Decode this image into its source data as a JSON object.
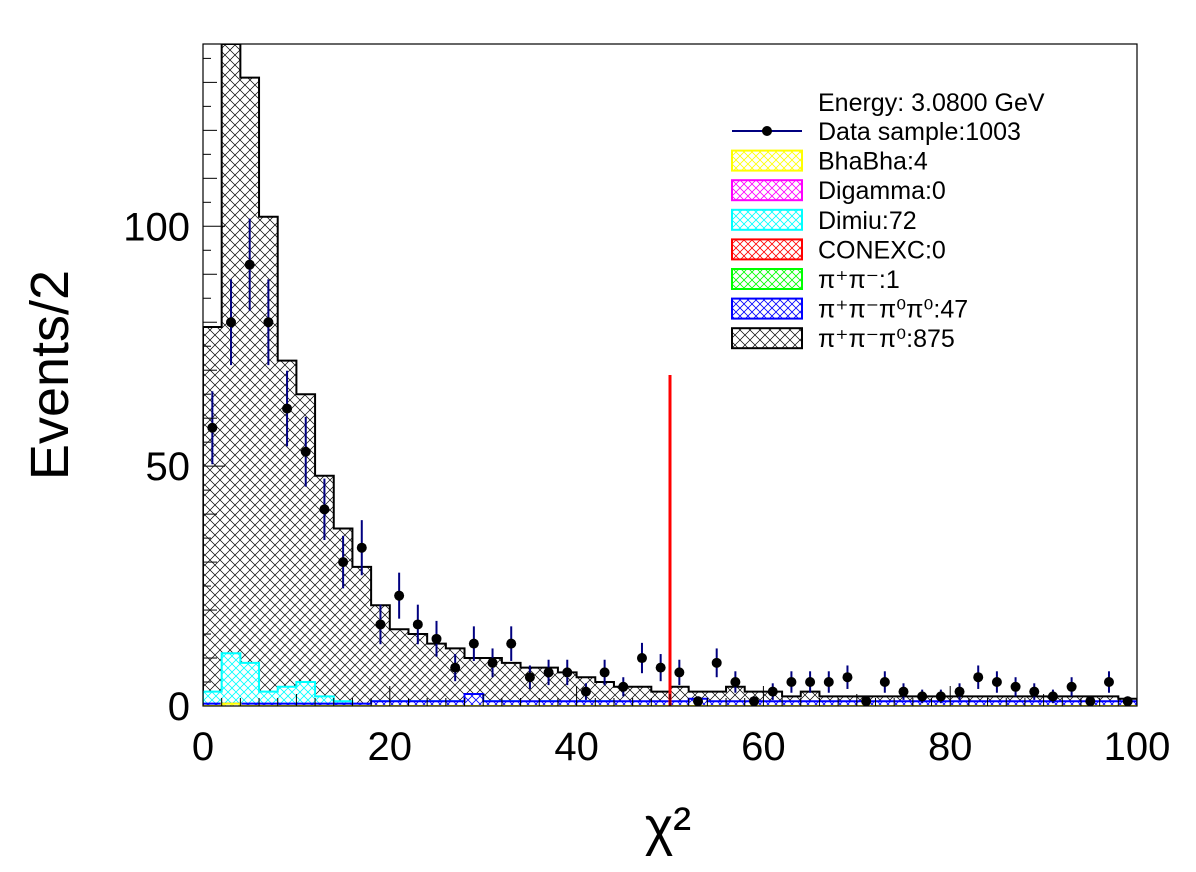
{
  "chart_data": {
    "type": "histogram",
    "xlabel": "χ²",
    "ylabel": "Events/2",
    "xlim": [
      0,
      100
    ],
    "ylim": [
      0,
      138
    ],
    "x_ticks": [
      "0",
      "20",
      "40",
      "60",
      "80",
      "100"
    ],
    "y_ticks": [
      "0",
      "50",
      "100"
    ],
    "bin_width": 2,
    "cut_line": {
      "x": 50,
      "y_top": 69,
      "color": "#ff0000"
    },
    "legend": {
      "header": "Energy: 3.0800 GeV",
      "entries": [
        {
          "label": "Data sample:1003",
          "kind": "marker",
          "color": "#000080"
        },
        {
          "label": "BhaBha:4",
          "kind": "box",
          "color": "#ffff00"
        },
        {
          "label": "Digamma:0",
          "kind": "box",
          "color": "#ff00ff"
        },
        {
          "label": "Dimiu:72",
          "kind": "box",
          "color": "#00ffff"
        },
        {
          "label": "CONEXC:0",
          "kind": "box",
          "color": "#ff0000"
        },
        {
          "label": "π⁺π⁻:1",
          "kind": "box",
          "color": "#00ff00"
        },
        {
          "label": "π⁺π⁻π⁰π⁰:47",
          "kind": "box",
          "color": "#0000ff"
        },
        {
          "label": "π⁺π⁻π⁰:875",
          "kind": "box",
          "color": "#000000"
        }
      ]
    },
    "stack_total": [
      79,
      138,
      131,
      102,
      72,
      65,
      48,
      37,
      29,
      21,
      16,
      15,
      13,
      12,
      10,
      10,
      9,
      8,
      8,
      7,
      6,
      5,
      4,
      4,
      3,
      4,
      3,
      3,
      4,
      3,
      3,
      2,
      3,
      2,
      2,
      2,
      2,
      2,
      2,
      2,
      2,
      2,
      2,
      2,
      2,
      2,
      2,
      2,
      2,
      1.5
    ],
    "series": [
      {
        "name": "Dimiu:72",
        "color": "#00ffff",
        "values": [
          3,
          11,
          9,
          3,
          4,
          5,
          2,
          1,
          0,
          1,
          1,
          1,
          1,
          1,
          2,
          1,
          1,
          0.5,
          1,
          0.5,
          1,
          1,
          0.5,
          0.5,
          0.5,
          0.5,
          0.5,
          0.5,
          0.5,
          0,
          0.5,
          0,
          0.5,
          0.5,
          0.5,
          0.5,
          0.5,
          0.5,
          0,
          0.5,
          0.5,
          0,
          0.5,
          0.5,
          0.5,
          0.5,
          0.5,
          0.5,
          0.5,
          0.5
        ]
      },
      {
        "name": "π⁺π⁻π⁰π⁰:47",
        "color": "#0000ff",
        "values": [
          0.5,
          0.5,
          0.5,
          0.5,
          0.5,
          0.5,
          0.5,
          0.5,
          0.5,
          1,
          1,
          1,
          1,
          1,
          2.5,
          1,
          1,
          1,
          1,
          1,
          1,
          1,
          1,
          1,
          1,
          1,
          1.5,
          1,
          1,
          1,
          1,
          1,
          1,
          1,
          1,
          1,
          1,
          1,
          1,
          1,
          1,
          1,
          1,
          1,
          1,
          1,
          1,
          1,
          1,
          1
        ]
      },
      {
        "name": "BhaBha:4",
        "color": "#ffff00",
        "values": [
          0,
          0.5,
          0,
          0,
          0,
          0,
          0,
          0,
          0,
          0,
          0,
          0,
          0,
          0,
          0,
          0,
          0,
          0,
          0,
          0,
          0,
          0,
          0,
          0,
          0,
          0,
          0,
          0,
          0,
          0,
          0,
          0,
          0,
          0,
          0,
          0,
          0,
          0,
          0,
          0,
          0,
          0,
          0,
          0,
          0,
          0,
          0,
          0,
          0,
          0
        ]
      }
    ],
    "data_points": {
      "name": "Data sample:1003",
      "x": [
        1,
        3,
        5,
        7,
        9,
        11,
        13,
        15,
        17,
        19,
        21,
        23,
        25,
        27,
        29,
        31,
        33,
        35,
        37,
        39,
        41,
        43,
        45,
        47,
        49,
        51,
        53,
        55,
        57,
        59,
        61,
        63,
        65,
        67,
        69,
        71,
        73,
        75,
        77,
        79,
        81,
        83,
        85,
        87,
        89,
        91,
        93,
        95,
        97,
        99
      ],
      "y": [
        58,
        80,
        92,
        80,
        62,
        53,
        41,
        30,
        33,
        17,
        23,
        17,
        14,
        8,
        13,
        9,
        13,
        6,
        7,
        7,
        3,
        7,
        4,
        10,
        8,
        7,
        1,
        9,
        5,
        1,
        3,
        5,
        5,
        5,
        6,
        1,
        5,
        3,
        2,
        2,
        3,
        6,
        5,
        4,
        3,
        2,
        4,
        1,
        5,
        1
      ]
    }
  }
}
